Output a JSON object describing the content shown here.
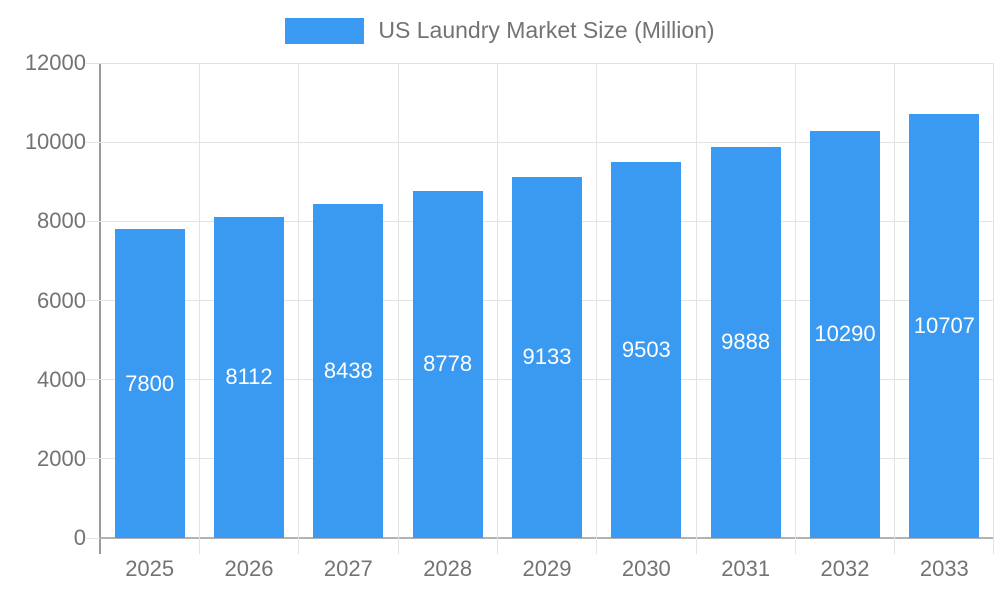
{
  "legend": {
    "items": [
      {
        "label": "US Laundry Market Size (Million)",
        "color": "#3a99f0"
      }
    ]
  },
  "colors": {
    "bar": "#3a99f0",
    "bar_value_label": "#ffffff",
    "gridline": "#e3e3e3",
    "tick": "#e3e3e3",
    "y_axis_line": "#9a9a9a",
    "x_axis_line": "#b3b3b3",
    "axis_text": "#737373",
    "background": "#ffffff"
  },
  "chart_data": {
    "type": "bar",
    "title": "US Laundry Market Size (Million)",
    "categories": [
      "2025",
      "2026",
      "2027",
      "2028",
      "2029",
      "2030",
      "2031",
      "2032",
      "2033"
    ],
    "series": [
      {
        "name": "US Laundry Market Size (Million)",
        "values": [
          7800,
          8112,
          8438,
          8778,
          9133,
          9503,
          9888,
          10290,
          10707
        ]
      }
    ],
    "value_labels": {
      "visible": true,
      "position": "inside-middle",
      "color": "#ffffff"
    },
    "xlabel": "",
    "ylabel": "",
    "ylim": [
      0,
      12000
    ],
    "ytick_interval": 2000,
    "yticks": [
      0,
      2000,
      4000,
      6000,
      8000,
      10000,
      12000
    ],
    "grid": true,
    "legend_position": "top-center"
  }
}
